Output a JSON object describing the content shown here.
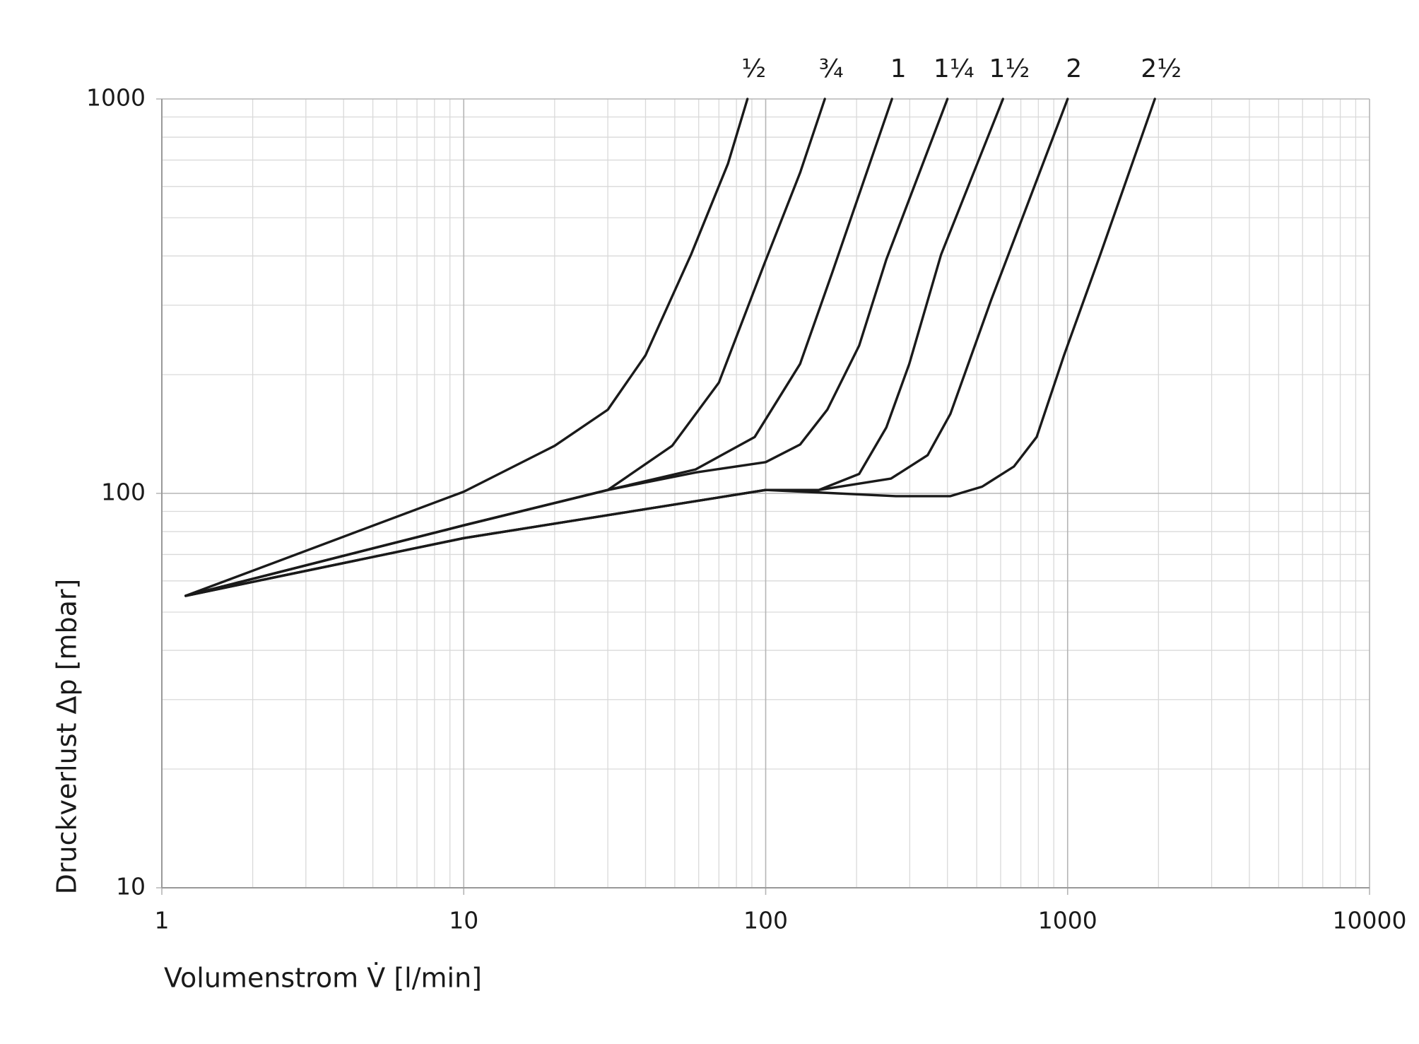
{
  "chart_data": {
    "type": "line",
    "xlabel": "Volumenstrom V̇ [l/min]",
    "ylabel": "Druckverlust Δp [mbar]",
    "xscale": "log",
    "yscale": "log",
    "xlim": [
      1,
      10000
    ],
    "ylim": [
      10,
      1000
    ],
    "xticks": [
      1,
      10,
      100,
      1000,
      10000
    ],
    "yticks": [
      10,
      100,
      1000
    ],
    "grid": true,
    "minor_grid": true,
    "series": [
      {
        "name": "½",
        "color": "#1a1a1a",
        "x": [
          1.2,
          10,
          20,
          30,
          40,
          56.6,
          75,
          87
        ],
        "values": [
          55,
          101,
          132,
          163,
          224,
          403,
          685,
          1000
        ]
      },
      {
        "name": "¾",
        "color": "#1a1a1a",
        "x": [
          1.2,
          10,
          30,
          49,
          70,
          99,
          130,
          157
        ],
        "values": [
          55,
          83,
          102,
          132,
          191,
          382,
          650,
          1000
        ]
      },
      {
        "name": "1",
        "color": "#1a1a1a",
        "x": [
          1.2,
          10,
          30,
          58.6,
          92,
          130,
          166,
          262
        ],
        "values": [
          55,
          83,
          102,
          115,
          139,
          213,
          362,
          1000
        ]
      },
      {
        "name": "1¼",
        "color": "#1a1a1a",
        "x": [
          1.2,
          10,
          30,
          58.6,
          100,
          130,
          160,
          204,
          251,
          400
        ],
        "values": [
          55,
          83,
          102,
          113,
          120,
          133,
          163,
          237,
          392,
          1000
        ]
      },
      {
        "name": "1½",
        "color": "#1a1a1a",
        "x": [
          1.2,
          10,
          100,
          150,
          204,
          251,
          299,
          381,
          611
        ],
        "values": [
          55,
          77,
          102,
          102,
          112,
          147,
          213,
          403,
          1000
        ]
      },
      {
        "name": "2",
        "color": "#1a1a1a",
        "x": [
          1.2,
          10,
          100,
          150,
          260,
          344,
          409,
          558,
          1000
        ],
        "values": [
          55,
          77,
          102,
          102,
          109,
          125,
          159,
          309,
          1000
        ]
      },
      {
        "name": "2½",
        "color": "#1a1a1a",
        "x": [
          1.2,
          10,
          100,
          270,
          409,
          521,
          664,
          790,
          973,
          1283,
          1945
        ],
        "values": [
          55,
          77,
          102,
          98.4,
          98.4,
          104,
          117,
          139,
          224,
          403,
          1000
        ]
      }
    ]
  }
}
